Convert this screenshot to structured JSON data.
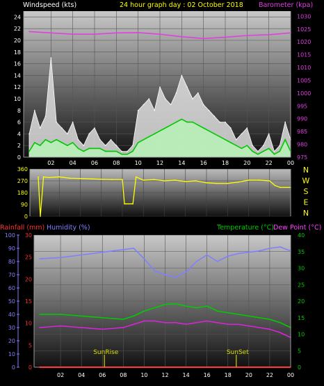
{
  "header": {
    "windspeed_label": "Windspeed (kts)",
    "title": "24 hour graph day : 02 October 2018",
    "barometer_label": "Barometer (kpa)"
  },
  "direction_letters": [
    "N",
    "W",
    "S",
    "E",
    "N"
  ],
  "bottom_header": {
    "rainfall_label": "Rainfall (mm)",
    "humidity_label": "Humidity (%)",
    "temperature_label": "Temperature (°C)",
    "dewpoint_label": "Dew Point (°C)"
  },
  "markers": {
    "sunrise": "SunRise",
    "sunset": "SunSet"
  },
  "colors": {
    "wind_gust": "#ffffff",
    "wind_avg": "#b8f0b8",
    "wind_avg_dark": "#00c800",
    "barometer": "#e040e0",
    "direction": "#ffff00",
    "rainfall": "#ff0000",
    "humidity": "#8080ff",
    "temperature": "#00cc00",
    "dewpoint": "#dd22dd",
    "sun": "#aaaa00"
  },
  "chart_data": [
    {
      "type": "line",
      "title": "24 hour graph day : 02 October 2018",
      "x_ticks": [
        "02",
        "04",
        "06",
        "08",
        "10",
        "12",
        "14",
        "16",
        "18",
        "20",
        "22",
        "00"
      ],
      "y_left": {
        "label": "Windspeed (kts)",
        "ticks": [
          0,
          2,
          4,
          6,
          8,
          10,
          12,
          14,
          16,
          18,
          20,
          22,
          24
        ],
        "range": [
          0,
          25
        ]
      },
      "y_right": {
        "label": "Barometer (kpa)",
        "ticks": [
          975,
          980,
          985,
          990,
          995,
          1000,
          1005,
          1010,
          1015,
          1020,
          1025,
          1030
        ],
        "range": [
          975,
          1032
        ]
      },
      "series": [
        {
          "name": "Windspeed (kts)",
          "role": "gust",
          "x": [
            0,
            0.5,
            1,
            1.5,
            2,
            2.5,
            3,
            3.5,
            4,
            4.5,
            5,
            5.5,
            6,
            6.5,
            7,
            7.5,
            8,
            8.5,
            9,
            9.5,
            10,
            10.5,
            11,
            11.5,
            12,
            12.5,
            13,
            13.5,
            14,
            14.5,
            15,
            15.5,
            16,
            16.5,
            17,
            17.5,
            18,
            18.5,
            19,
            19.5,
            20,
            20.5,
            21,
            21.5,
            22,
            22.5,
            23,
            23.5,
            24
          ],
          "values": [
            4,
            8,
            5,
            7,
            17,
            6,
            5,
            4,
            6,
            3,
            2,
            4,
            5,
            3,
            2,
            3,
            2,
            1,
            1,
            2,
            8,
            9,
            10,
            8,
            12,
            10,
            9,
            11,
            14,
            12,
            10,
            11,
            9,
            8,
            7,
            6,
            6,
            5,
            3,
            4,
            5,
            2,
            1,
            2,
            4,
            1,
            2,
            6,
            3
          ]
        },
        {
          "name": "Average",
          "role": "average",
          "x": [
            0,
            0.5,
            1,
            1.5,
            2,
            2.5,
            3,
            3.5,
            4,
            4.5,
            5,
            5.5,
            6,
            6.5,
            7,
            7.5,
            8,
            8.5,
            9,
            9.5,
            10,
            10.5,
            11,
            11.5,
            12,
            12.5,
            13,
            13.5,
            14,
            14.5,
            15,
            15.5,
            16,
            16.5,
            17,
            17.5,
            18,
            18.5,
            19,
            19.5,
            20,
            20.5,
            21,
            21.5,
            22,
            22.5,
            23,
            23.5,
            24
          ],
          "values": [
            1,
            2.5,
            2,
            3,
            2.5,
            3,
            2.5,
            2,
            2.5,
            1.5,
            1,
            1.5,
            1.5,
            1.5,
            1,
            1,
            1,
            0.5,
            0.5,
            1,
            2.5,
            3,
            3.5,
            4,
            4.5,
            5,
            5.5,
            6,
            6.5,
            6,
            6,
            5.5,
            5,
            4.5,
            4,
            3.5,
            3,
            2.5,
            2,
            1.5,
            2,
            1,
            0.5,
            1,
            1.5,
            0.5,
            1,
            3,
            1
          ]
        },
        {
          "name": "Barometer (kpa)",
          "axis": "right",
          "x": [
            0,
            2,
            4,
            6,
            8,
            10,
            12,
            14,
            16,
            18,
            20,
            22,
            24
          ],
          "values": [
            1024,
            1023.5,
            1023,
            1023,
            1023.5,
            1023.6,
            1023,
            1022,
            1021.3,
            1021.8,
            1022.5,
            1022.8,
            1023.5
          ]
        }
      ]
    },
    {
      "type": "line",
      "title": "",
      "y_ticks": [
        0,
        90,
        180,
        270,
        360
      ],
      "y_range": [
        0,
        360
      ],
      "series": [
        {
          "name": "Wind Direction",
          "x": [
            0,
            0.2,
            0.5,
            1,
            2,
            3,
            4,
            5,
            6,
            7,
            8,
            8.2,
            9,
            9.3,
            10,
            11,
            12,
            13,
            14,
            15,
            16,
            17,
            18,
            19,
            20,
            21,
            22,
            22.5,
            23,
            24
          ],
          "values": [
            300,
            0,
            300,
            295,
            300,
            290,
            288,
            285,
            282,
            280,
            280,
            95,
            95,
            300,
            275,
            280,
            270,
            275,
            265,
            270,
            255,
            250,
            250,
            260,
            275,
            275,
            270,
            235,
            220,
            220
          ]
        }
      ]
    },
    {
      "type": "line",
      "title": "",
      "x_ticks": [
        "02",
        "04",
        "06",
        "08",
        "10",
        "12",
        "14",
        "16",
        "18",
        "20",
        "22",
        "00"
      ],
      "y_left_rain": {
        "label": "Rainfall (mm)",
        "ticks": [
          0,
          5,
          10,
          15,
          20,
          25,
          30
        ],
        "range": [
          0,
          30
        ]
      },
      "y_left_humidity": {
        "label": "Humidity (%)",
        "ticks": [
          0,
          10,
          20,
          30,
          40,
          50,
          60,
          70,
          80,
          90,
          100
        ],
        "range": [
          0,
          100
        ]
      },
      "y_right": {
        "label": "Temperature (°C)",
        "ticks": [
          0,
          5,
          10,
          15,
          20,
          25,
          30,
          35,
          40
        ],
        "range": [
          0,
          40
        ]
      },
      "series": [
        {
          "name": "Humidity (%)",
          "axis": "humidity",
          "x": [
            0,
            2,
            4,
            6,
            8,
            9,
            10,
            11,
            12,
            13,
            14,
            15,
            16,
            17,
            18,
            19,
            20,
            21,
            22,
            23,
            24
          ],
          "values": [
            82,
            83,
            85,
            87,
            89,
            90,
            82,
            73,
            70,
            68,
            72,
            80,
            85,
            80,
            84,
            86,
            87,
            88,
            90,
            91,
            88
          ]
        },
        {
          "name": "Temperature (°C)",
          "axis": "right",
          "x": [
            0,
            2,
            4,
            6,
            8,
            9,
            10,
            11,
            12,
            13,
            14,
            15,
            16,
            17,
            18,
            19,
            20,
            21,
            22,
            23,
            24
          ],
          "values": [
            16,
            16,
            15.5,
            15,
            14.5,
            15.5,
            17,
            18,
            19,
            19.2,
            18.5,
            18,
            18.5,
            17,
            16.5,
            16,
            15.5,
            15,
            14.5,
            13.5,
            12
          ]
        },
        {
          "name": "Dew Point (°C)",
          "axis": "right",
          "x": [
            0,
            2,
            4,
            6,
            8,
            9,
            10,
            11,
            12,
            13,
            14,
            15,
            16,
            17,
            18,
            19,
            20,
            21,
            22,
            23,
            24
          ],
          "values": [
            12,
            12.5,
            12,
            11.5,
            12,
            13,
            14,
            14,
            13.5,
            13.5,
            13,
            13.5,
            14,
            13.5,
            13,
            13,
            12.5,
            12,
            11.5,
            10.5,
            9
          ]
        },
        {
          "name": "Rainfall (mm)",
          "axis": "rain",
          "x": [
            0,
            24
          ],
          "values": [
            0,
            0
          ]
        }
      ],
      "markers": [
        {
          "label": "SunRise",
          "hour": 6.2
        },
        {
          "label": "SunSet",
          "hour": 18.8
        }
      ]
    }
  ]
}
